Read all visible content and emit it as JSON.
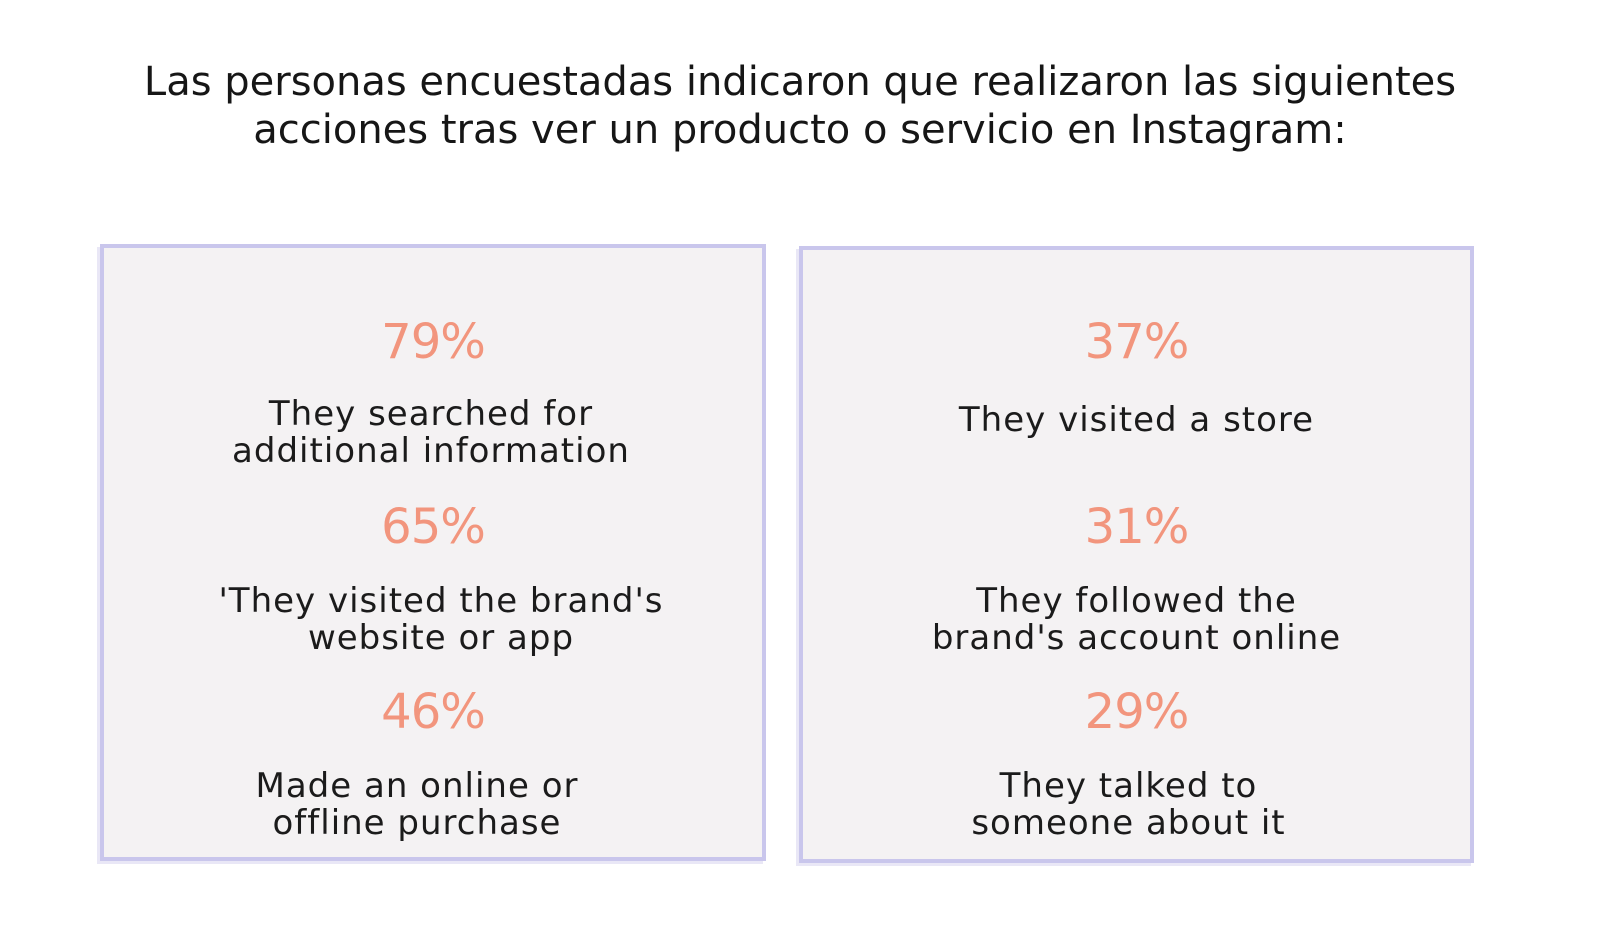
{
  "heading": {
    "line1": "Las personas encuestadas indicaron que realizaron las siguientes",
    "line2": "acciones tras ver un producto o servicio en Instagram:"
  },
  "left_panel": {
    "stats": [
      {
        "percent": "79%",
        "lines": [
          "They searched for",
          "additional information"
        ]
      },
      {
        "percent": "65%",
        "lines": [
          "'They visited the brand's",
          "website or app"
        ]
      },
      {
        "percent": "46%",
        "lines": [
          "Made an online or",
          "offline purchase"
        ]
      }
    ]
  },
  "right_panel": {
    "stats": [
      {
        "percent": "37%",
        "lines": [
          "They visited a store"
        ]
      },
      {
        "percent": "31%",
        "lines": [
          "They followed the",
          "brand's account online"
        ]
      },
      {
        "percent": "29%",
        "lines": [
          "They talked to",
          "someone about it"
        ]
      }
    ]
  },
  "colors": {
    "percent": "#f2957d",
    "panel_border": "#c9c6ec",
    "panel_background": "#f4f2f3"
  }
}
